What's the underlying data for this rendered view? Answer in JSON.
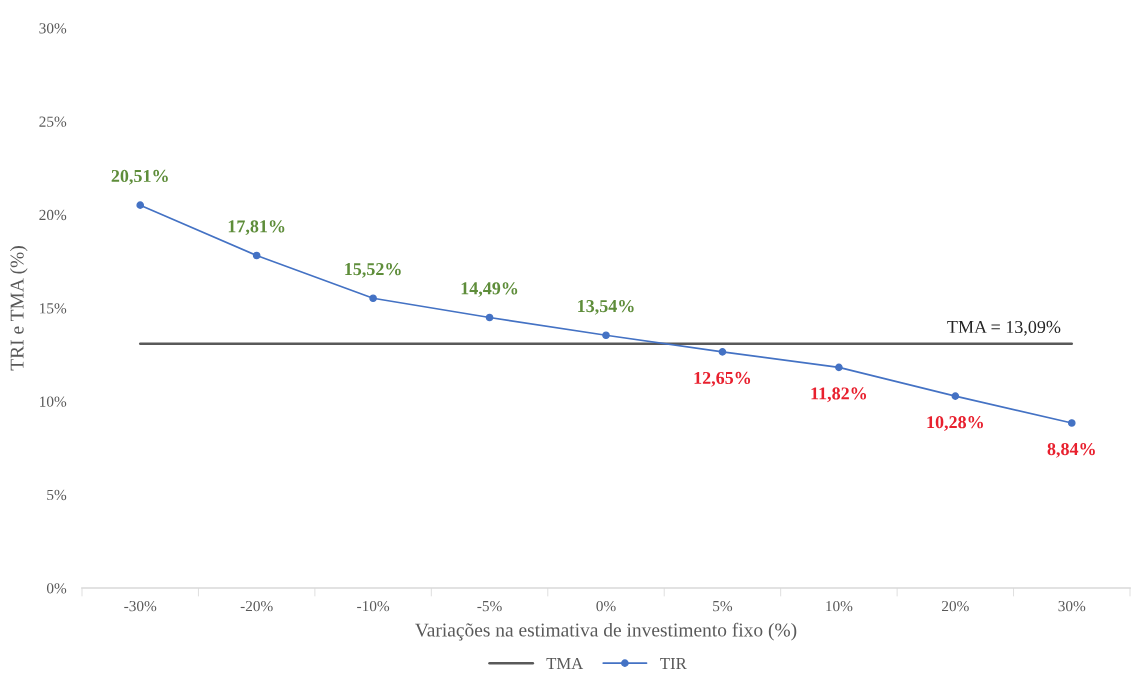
{
  "chart_data": {
    "type": "line",
    "xlabel": "Variações na estimativa de investimento fixo (%)",
    "ylabel": "TRI e TMA (%)",
    "categories": [
      "-30%",
      "-20%",
      "-10%",
      "-5%",
      "0%",
      "5%",
      "10%",
      "20%",
      "30%"
    ],
    "series": [
      {
        "name": "TMA",
        "color": "#595959",
        "marker": "none",
        "values": [
          13.09,
          13.09,
          13.09,
          13.09,
          13.09,
          13.09,
          13.09,
          13.09,
          13.09
        ]
      },
      {
        "name": "TIR",
        "color": "#4472c4",
        "marker": "circle",
        "values": [
          20.51,
          17.81,
          15.52,
          14.49,
          13.54,
          12.65,
          11.82,
          10.28,
          8.84
        ],
        "value_labels": [
          "20,51%",
          "17,81%",
          "15,52%",
          "14,49%",
          "13,54%",
          "12,65%",
          "11,82%",
          "10,28%",
          "8,84%"
        ]
      }
    ],
    "ylim": [
      0,
      30
    ],
    "yticks": [
      {
        "value": 0,
        "label": "0%"
      },
      {
        "value": 5,
        "label": "5%"
      },
      {
        "value": 10,
        "label": "10%"
      },
      {
        "value": 15,
        "label": "15%"
      },
      {
        "value": 20,
        "label": "20%"
      },
      {
        "value": 25,
        "label": "25%"
      },
      {
        "value": 30,
        "label": "30%"
      }
    ],
    "grid": false,
    "legend": "bottom",
    "line_style": "solid",
    "annotations": [
      {
        "text": "TMA = 13,09%",
        "x": "20%",
        "y": 13.09
      }
    ]
  }
}
